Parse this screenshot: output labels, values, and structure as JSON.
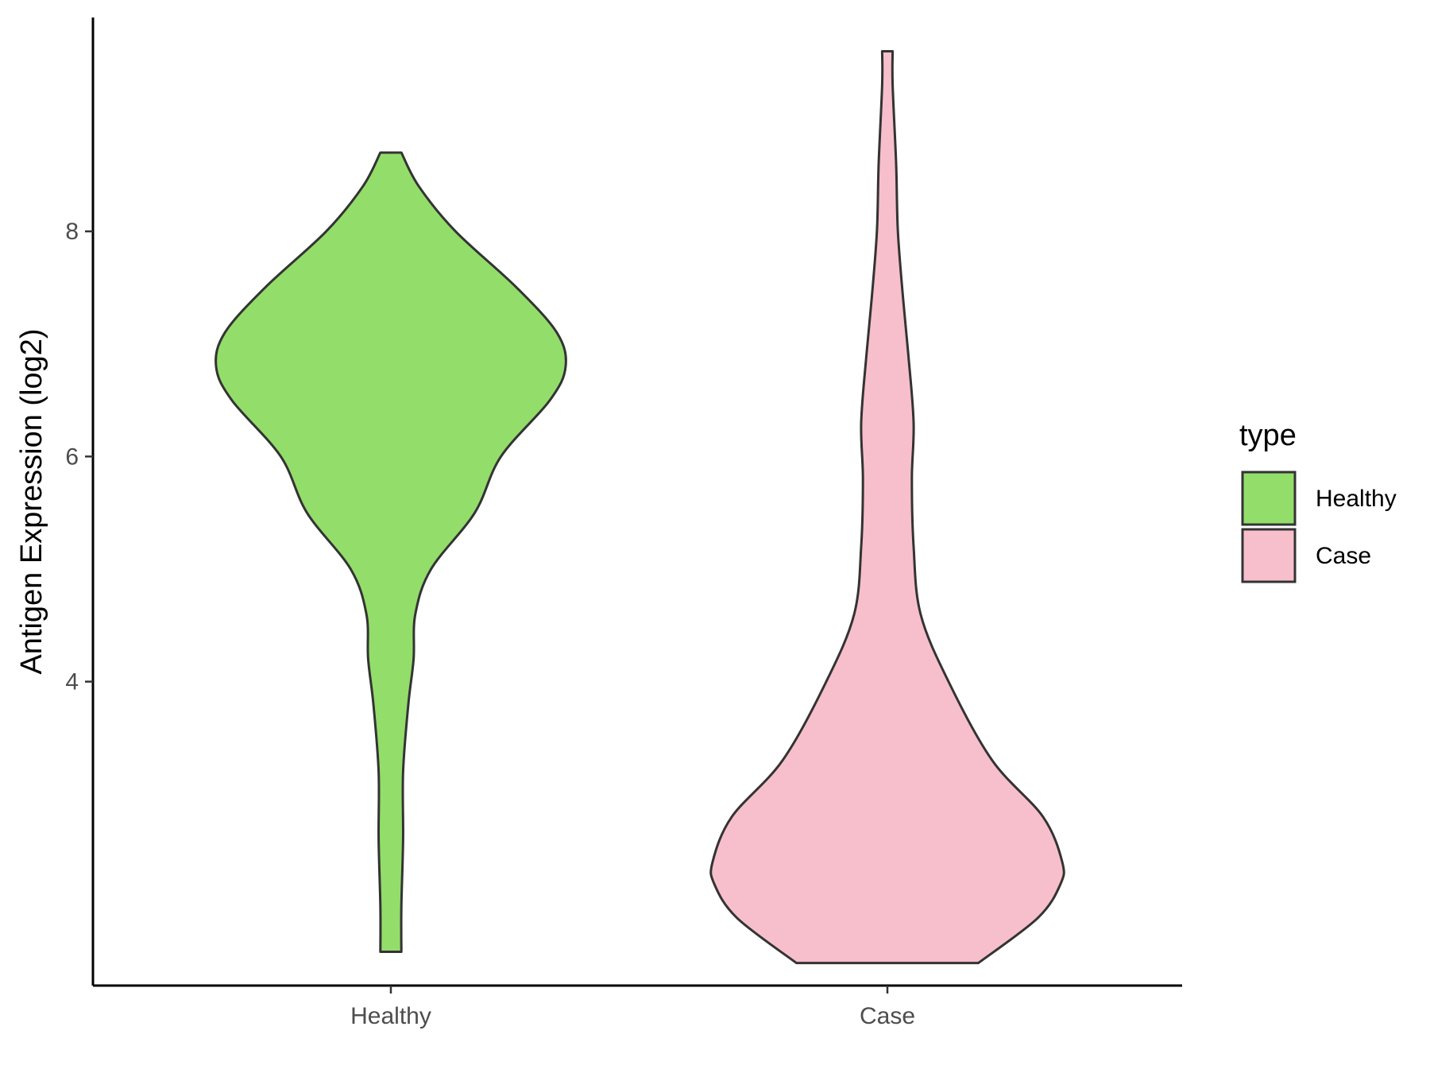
{
  "chart_data": {
    "type": "violin",
    "title": "",
    "xlabel": "",
    "ylabel": "Antigen Expression (log2)",
    "categories": [
      "Healthy",
      "Case"
    ],
    "y_ticks": [
      4,
      6,
      8
    ],
    "ylim": [
      1.3,
      9.9
    ],
    "grid": false,
    "legend": {
      "title": "type",
      "position": "right",
      "entries": [
        {
          "label": "Healthy",
          "color": "#93dd6a"
        },
        {
          "label": "Case",
          "color": "#f7bfcb"
        }
      ]
    },
    "series": [
      {
        "category": "Healthy",
        "color": "#93dd6a",
        "min": 1.6,
        "max": 8.7,
        "density_profile": [
          [
            1.6,
            0.06
          ],
          [
            2.0,
            0.06
          ],
          [
            2.6,
            0.07
          ],
          [
            3.2,
            0.07
          ],
          [
            3.8,
            0.1
          ],
          [
            4.2,
            0.13
          ],
          [
            4.6,
            0.14
          ],
          [
            5.0,
            0.23
          ],
          [
            5.5,
            0.48
          ],
          [
            6.0,
            0.63
          ],
          [
            6.5,
            0.91
          ],
          [
            6.8,
            1.0
          ],
          [
            7.1,
            0.95
          ],
          [
            7.5,
            0.72
          ],
          [
            8.0,
            0.37
          ],
          [
            8.4,
            0.16
          ],
          [
            8.7,
            0.06
          ]
        ]
      },
      {
        "category": "Case",
        "color": "#f7bfcb",
        "min": 1.5,
        "max": 9.6,
        "density_profile": [
          [
            1.5,
            0.52
          ],
          [
            1.9,
            0.86
          ],
          [
            2.2,
            0.99
          ],
          [
            2.4,
            1.0
          ],
          [
            2.8,
            0.89
          ],
          [
            3.3,
            0.6
          ],
          [
            4.0,
            0.35
          ],
          [
            4.6,
            0.19
          ],
          [
            5.2,
            0.15
          ],
          [
            5.8,
            0.14
          ],
          [
            6.3,
            0.15
          ],
          [
            6.9,
            0.12
          ],
          [
            7.4,
            0.09
          ],
          [
            8.0,
            0.06
          ],
          [
            8.6,
            0.05
          ],
          [
            9.3,
            0.03
          ],
          [
            9.6,
            0.03
          ]
        ]
      }
    ]
  }
}
